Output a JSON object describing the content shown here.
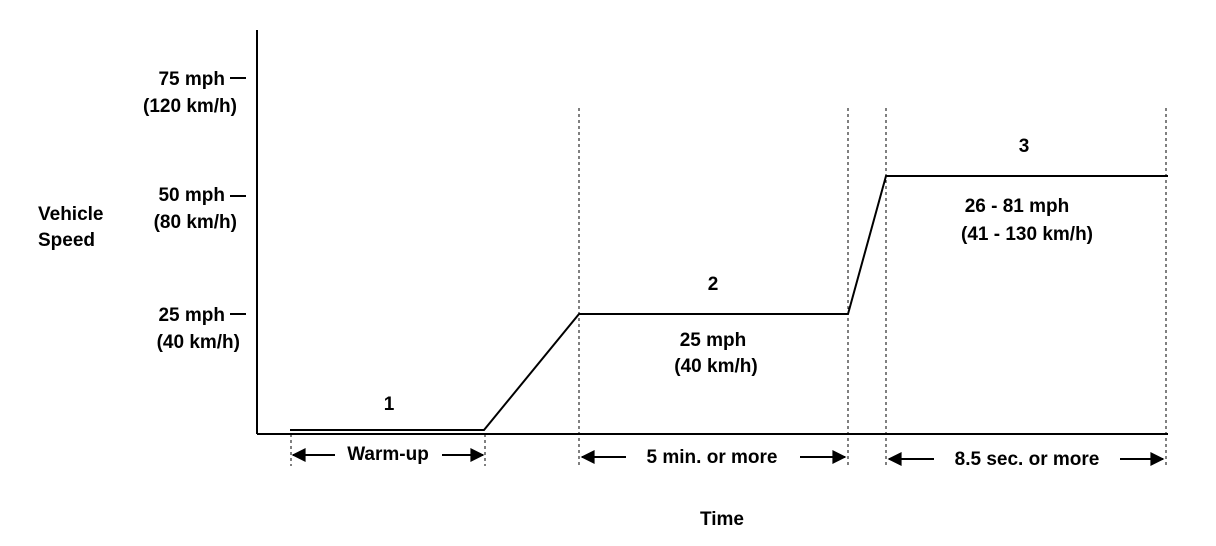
{
  "y_axis": {
    "title_line1": "Vehicle",
    "title_line2": "Speed",
    "ticks": [
      {
        "mph": "75 mph",
        "kmh": "(120 km/h)"
      },
      {
        "mph": "50 mph",
        "kmh": "(80 km/h)"
      },
      {
        "mph": "25 mph",
        "kmh": "(40 km/h)"
      }
    ]
  },
  "x_axis": {
    "title": "Time"
  },
  "phases": [
    {
      "number": "1",
      "duration": "Warm-up"
    },
    {
      "number": "2",
      "speed_line1": "25 mph",
      "speed_line2": "(40 km/h)",
      "duration": "5 min. or more"
    },
    {
      "number": "3",
      "speed_line1": "26 - 81 mph",
      "speed_line2": "(41 - 130 km/h)",
      "duration": "8.5 sec. or more"
    }
  ]
}
